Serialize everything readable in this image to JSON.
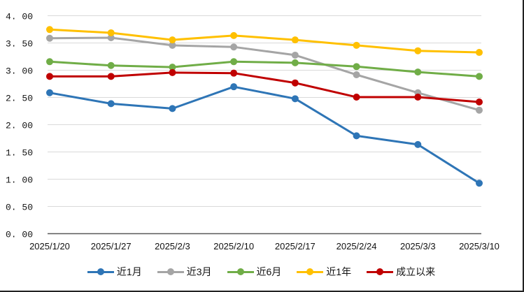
{
  "chart_data": {
    "type": "line",
    "title": "",
    "xlabel": "",
    "ylabel": "",
    "ylim": [
      0,
      4
    ],
    "yticks": [
      "0.00",
      "0.50",
      "1.00",
      "1.50",
      "2.00",
      "2.50",
      "3.00",
      "3.50",
      "4.00"
    ],
    "grid": true,
    "legend_position": "bottom",
    "categories": [
      "2025/1/20",
      "2025/1/27",
      "2025/2/3",
      "2025/2/10",
      "2025/2/17",
      "2025/2/24",
      "2025/3/3",
      "2025/3/10"
    ],
    "series": [
      {
        "name": "近1月",
        "color": "#2E75B6",
        "values": [
          2.58,
          2.38,
          2.29,
          2.69,
          2.47,
          1.79,
          1.63,
          0.92
        ]
      },
      {
        "name": "近3月",
        "color": "#A5A5A5",
        "values": [
          3.58,
          3.59,
          3.45,
          3.42,
          3.27,
          2.91,
          2.58,
          2.26
        ]
      },
      {
        "name": "近6月",
        "color": "#70AD47",
        "values": [
          3.15,
          3.08,
          3.05,
          3.15,
          3.13,
          3.06,
          2.96,
          2.88
        ]
      },
      {
        "name": "近1年",
        "color": "#FFC000",
        "values": [
          3.74,
          3.68,
          3.55,
          3.63,
          3.55,
          3.45,
          3.35,
          3.32
        ]
      },
      {
        "name": "成立以来",
        "color": "#C00000",
        "values": [
          2.88,
          2.88,
          2.95,
          2.94,
          2.76,
          2.5,
          2.5,
          2.41
        ]
      }
    ]
  },
  "legend": {
    "items": [
      {
        "label": "近1月",
        "color": "#2E75B6"
      },
      {
        "label": "近3月",
        "color": "#A5A5A5"
      },
      {
        "label": "近6月",
        "color": "#70AD47"
      },
      {
        "label": "近1年",
        "color": "#FFC000"
      },
      {
        "label": "成立以来",
        "color": "#C00000"
      }
    ]
  }
}
